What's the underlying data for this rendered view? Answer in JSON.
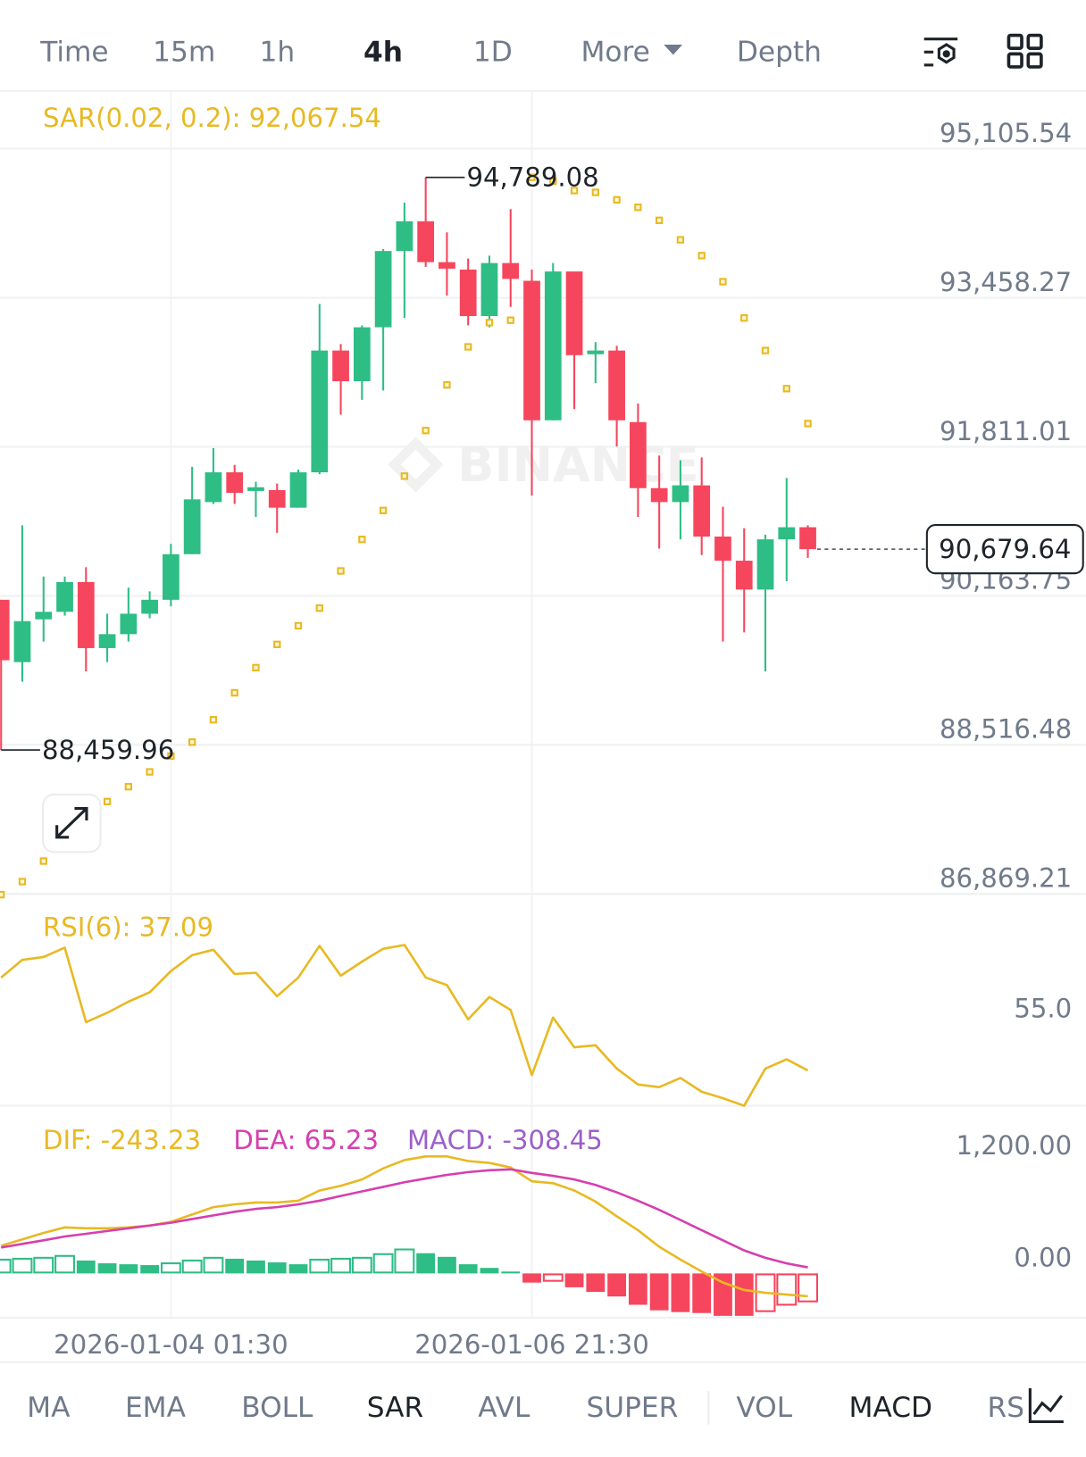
{
  "toolbar": {
    "tabs": [
      "Time",
      "15m",
      "1h",
      "4h",
      "1D",
      "More",
      "Depth"
    ],
    "active": [
      3
    ]
  },
  "watermark": "BINANCE",
  "chart_data": [
    {
      "type": "candlestick",
      "categories": [
        null,
        null,
        null,
        null,
        null,
        null,
        null,
        null,
        "2026-01-04 01:30",
        null,
        null,
        null,
        null,
        null,
        null,
        null,
        null,
        null,
        null,
        null,
        null,
        null,
        null,
        null,
        null,
        "2026-01-06 21:30",
        null,
        null,
        null,
        null,
        null,
        null,
        null,
        null,
        null,
        null,
        null,
        null,
        null
      ],
      "open": [
        90120,
        89431,
        89904,
        89987,
        90316,
        89586,
        89740,
        89966,
        90120,
        90624,
        91200,
        91529,
        91323,
        91333,
        91138,
        91529,
        92875,
        92536,
        93132,
        93975,
        94304,
        93852,
        93770,
        93256,
        93842,
        93646,
        92104,
        93749,
        92834,
        92875,
        92084,
        91354,
        91200,
        91385,
        90819,
        90552,
        90233,
        90788,
        90922
      ],
      "high": [
        90120,
        90943,
        90377,
        90377,
        90480,
        89966,
        90254,
        90213,
        90737,
        91590,
        91796,
        91611,
        91426,
        91405,
        91559,
        93389,
        92947,
        93153,
        93996,
        94510,
        94789.08,
        94181,
        93893,
        93924,
        94438,
        93770,
        93842,
        93749,
        92968,
        92927,
        92289,
        91714,
        91662,
        91693,
        91148,
        90912,
        90840,
        91467,
        90943
      ],
      "low": [
        88459.96,
        89216,
        89658,
        89945,
        89329,
        89431,
        89658,
        89915,
        90048,
        90624,
        91179,
        91179,
        91035,
        90860,
        91138,
        91508,
        92166,
        92330,
        92433,
        93235,
        93800,
        93482,
        93153,
        93132,
        93358,
        91272,
        92104,
        92228,
        92515,
        91816,
        91035,
        90686,
        90788,
        90614,
        89658,
        89760,
        89329,
        90326,
        90583
      ],
      "close": [
        89452,
        89884,
        89987,
        90316,
        89586,
        89740,
        89966,
        90120,
        90624,
        91230,
        91529,
        91302,
        91364,
        91138,
        91529,
        92875,
        92536,
        93132,
        93975,
        94304,
        93852,
        93780,
        93256,
        93842,
        93667,
        92104,
        93749,
        92824,
        92875,
        92104,
        91354,
        91200,
        91385,
        90819,
        90552,
        90233,
        90788,
        90922,
        90679.64
      ],
      "up_color": "#2ebd85",
      "down_color": "#f6465d",
      "series": [
        {
          "name": "SAR(0.02, 0.2): 92,067.54",
          "color": "#e8b923",
          "values": [
            86861,
            87005,
            87232,
            87447,
            87674,
            87890,
            88054,
            88218,
            88393,
            88547,
            88794,
            89092,
            89370,
            89627,
            89833,
            90028,
            90439,
            90788,
            91107,
            91487,
            91991,
            92495,
            92916,
            93184,
            93210,
            94789,
            94746,
            94643,
            94623,
            94541,
            94458,
            94314,
            94099,
            93924,
            93636,
            93235,
            92875,
            92454,
            92067.54
          ]
        }
      ],
      "annotations": {
        "high": "94,789.08",
        "low": "88,459.96",
        "last": "90,679.64"
      },
      "ylim": [
        86869.21,
        95743
      ],
      "yticks": [
        {
          "value": 95105.54,
          "label": "95,105.54"
        },
        {
          "value": 93458.27,
          "label": "93,458.27"
        },
        {
          "value": 91811.01,
          "label": "91,811.01"
        },
        {
          "value": 90163.75,
          "label": "90,163.75"
        },
        {
          "value": 88516.48,
          "label": "88,516.48"
        },
        {
          "value": 86869.21,
          "label": "86,869.21"
        }
      ],
      "grid": true
    },
    {
      "type": "line",
      "series": [
        {
          "name": "RSI(6): 37.09",
          "color": "#e8b923",
          "values": [
            72.9,
            79.7,
            80.8,
            84.4,
            55.7,
            59.3,
            63.6,
            67.2,
            75.4,
            81.5,
            83.6,
            74.3,
            74.7,
            65.7,
            72.9,
            85.1,
            73.6,
            79.0,
            84.0,
            85.4,
            72.9,
            70.0,
            56.8,
            65.4,
            60.4,
            35.3,
            57.5,
            46.0,
            46.8,
            37.8,
            31.7,
            30.7,
            34.2,
            28.9,
            26.4,
            23.5,
            37.8,
            41.4,
            37.09
          ]
        }
      ],
      "ylim": [
        23.5,
        105.1
      ],
      "yticks": [
        {
          "value": 55,
          "label": "55.0"
        }
      ],
      "grid": false
    },
    {
      "type": "macd",
      "series": [
        {
          "name": "DIF: -243.23",
          "color": "#e8b923",
          "values": [
            295,
            364,
            433,
            492,
            482,
            482,
            492,
            512,
            551,
            630,
            708,
            738,
            758,
            758,
            777,
            886,
            935,
            1004,
            1122,
            1210,
            1250,
            1250,
            1200,
            1181,
            1132,
            984,
            964,
            886,
            768,
            610,
            462,
            285,
            148,
            20,
            -98,
            -177,
            -207,
            -226,
            -243.23
          ]
        },
        {
          "name": "DEA: 65.23",
          "color": "#d63fae",
          "values": [
            276,
            315,
            354,
            394,
            423,
            453,
            482,
            512,
            541,
            581,
            620,
            659,
            689,
            708,
            738,
            777,
            827,
            876,
            925,
            974,
            1014,
            1053,
            1082,
            1102,
            1112,
            1073,
            1043,
            1004,
            945,
            866,
            777,
            679,
            571,
            462,
            354,
            246,
            167,
            108,
            65.23
          ]
        },
        {
          "name": "MACD: -308.45",
          "color": "#9c5fc9",
          "style": "histogram",
          "up_color": "#2ebd85",
          "down_color": "#f6465d",
          "values": [
            157,
            167,
            177,
            197,
            138,
            108,
            98,
            89,
            118,
            148,
            177,
            157,
            138,
            118,
            98,
            157,
            167,
            177,
            216,
            266,
            216,
            177,
            98,
            59,
            20,
            -98,
            -89,
            -148,
            -197,
            -246,
            -335,
            -394,
            -413,
            -423,
            -453,
            -453,
            -413,
            -344,
            -308.45
          ]
        }
      ],
      "ylim": [
        -472,
        1791
      ],
      "yticks": [
        {
          "value": 0,
          "label": "0.00"
        },
        {
          "value": 1200,
          "label": "1,200.00"
        }
      ],
      "grid": false
    }
  ],
  "indicator_bar": {
    "tabs": [
      "MA",
      "EMA",
      "BOLL",
      "SAR",
      "AVL",
      "SUPER",
      "VOL",
      "MACD",
      "RS"
    ],
    "active": [
      3,
      7
    ]
  }
}
